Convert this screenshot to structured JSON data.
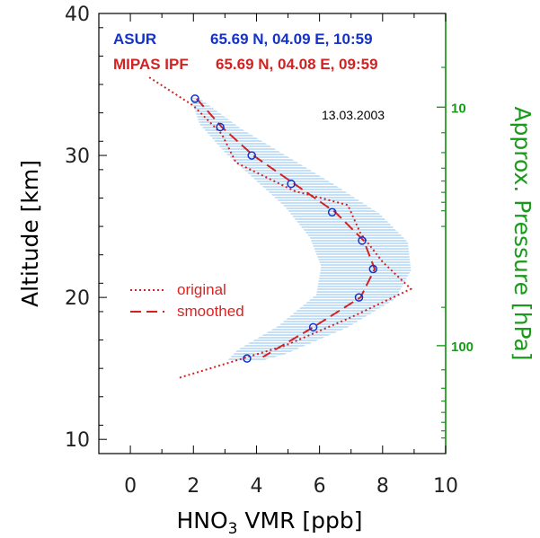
{
  "chart_data": {
    "type": "line",
    "xlabel_main": "HNO",
    "xlabel_sub": "3",
    "xlabel_rest": " VMR [ppb]",
    "ylabel": "Altitude [km]",
    "y2label": "Approx. Pressure [hPa]",
    "xlim": [
      -1,
      10
    ],
    "ylim": [
      9,
      40
    ],
    "x_ticks": [
      0,
      2,
      4,
      6,
      8,
      10
    ],
    "y_ticks": [
      10,
      20,
      30,
      40
    ],
    "pressure_ticks": [
      {
        "label": "10",
        "altitude": 33.4
      },
      {
        "label": "100",
        "altitude": 16.6
      }
    ],
    "pressure_minor_altitudes": [
      36.2,
      31.6,
      30.2,
      29.1,
      28.2,
      27.4,
      26.7,
      26.1,
      25.0,
      19.3,
      14.9,
      13.6,
      12.7,
      11.9,
      11.2,
      10.6,
      10.1
    ],
    "asur": {
      "label": "ASUR",
      "info": "65.69 N, 04.09 E, 10:59",
      "color": "#1432c8",
      "points": [
        {
          "x": 2.05,
          "y": 34.0
        },
        {
          "x": 2.85,
          "y": 32.0
        },
        {
          "x": 3.85,
          "y": 30.0
        },
        {
          "x": 5.1,
          "y": 28.0
        },
        {
          "x": 6.4,
          "y": 26.0
        },
        {
          "x": 7.35,
          "y": 24.0
        },
        {
          "x": 7.7,
          "y": 22.0
        },
        {
          "x": 7.25,
          "y": 20.0
        },
        {
          "x": 5.8,
          "y": 17.9
        },
        {
          "x": 3.7,
          "y": 15.7
        }
      ],
      "band_left": [
        {
          "x": 1.9,
          "y": 34.1
        },
        {
          "x": 2.2,
          "y": 32.2
        },
        {
          "x": 3.0,
          "y": 30.2
        },
        {
          "x": 4.0,
          "y": 28.2
        },
        {
          "x": 4.9,
          "y": 26.4
        },
        {
          "x": 5.7,
          "y": 24.2
        },
        {
          "x": 6.05,
          "y": 22.2
        },
        {
          "x": 5.9,
          "y": 20.2
        },
        {
          "x": 4.7,
          "y": 18.0
        },
        {
          "x": 3.4,
          "y": 16.3
        },
        {
          "x": 3.1,
          "y": 15.6
        }
      ],
      "band_right": [
        {
          "x": 2.2,
          "y": 34.0
        },
        {
          "x": 3.5,
          "y": 31.9
        },
        {
          "x": 5.0,
          "y": 29.9
        },
        {
          "x": 6.5,
          "y": 27.9
        },
        {
          "x": 7.9,
          "y": 25.9
        },
        {
          "x": 8.8,
          "y": 23.9
        },
        {
          "x": 8.9,
          "y": 21.9
        },
        {
          "x": 8.4,
          "y": 19.9
        },
        {
          "x": 6.9,
          "y": 17.9
        },
        {
          "x": 4.9,
          "y": 16.0
        },
        {
          "x": 4.1,
          "y": 15.5
        }
      ]
    },
    "mipas": {
      "label": "MIPAS IPF",
      "info": "65.69 N, 04.08 E, 09:59",
      "color": "#d22222",
      "original": [
        {
          "x": 0.6,
          "y": 35.5
        },
        {
          "x": 2.0,
          "y": 33.5
        },
        {
          "x": 2.9,
          "y": 31.5
        },
        {
          "x": 3.35,
          "y": 29.5
        },
        {
          "x": 5.2,
          "y": 27.5
        },
        {
          "x": 6.9,
          "y": 26.5
        },
        {
          "x": 7.3,
          "y": 24.5
        },
        {
          "x": 8.0,
          "y": 22.5
        },
        {
          "x": 8.9,
          "y": 20.6
        },
        {
          "x": 7.0,
          "y": 18.6
        },
        {
          "x": 4.9,
          "y": 16.6
        },
        {
          "x": 1.5,
          "y": 14.3
        }
      ],
      "smoothed": [
        {
          "x": 2.1,
          "y": 34.0
        },
        {
          "x": 2.9,
          "y": 32.0
        },
        {
          "x": 3.9,
          "y": 30.0
        },
        {
          "x": 5.2,
          "y": 28.0
        },
        {
          "x": 6.5,
          "y": 26.0
        },
        {
          "x": 7.4,
          "y": 24.0
        },
        {
          "x": 7.75,
          "y": 22.0
        },
        {
          "x": 7.3,
          "y": 20.0
        },
        {
          "x": 5.8,
          "y": 17.9
        },
        {
          "x": 4.2,
          "y": 15.8
        }
      ]
    },
    "legend": {
      "original": "original",
      "smoothed": "smoothed"
    },
    "date": "13.03.2003",
    "axis_color": "#000000",
    "pressure_color": "#1a9a1a",
    "band_color": "#9ecbf0"
  }
}
